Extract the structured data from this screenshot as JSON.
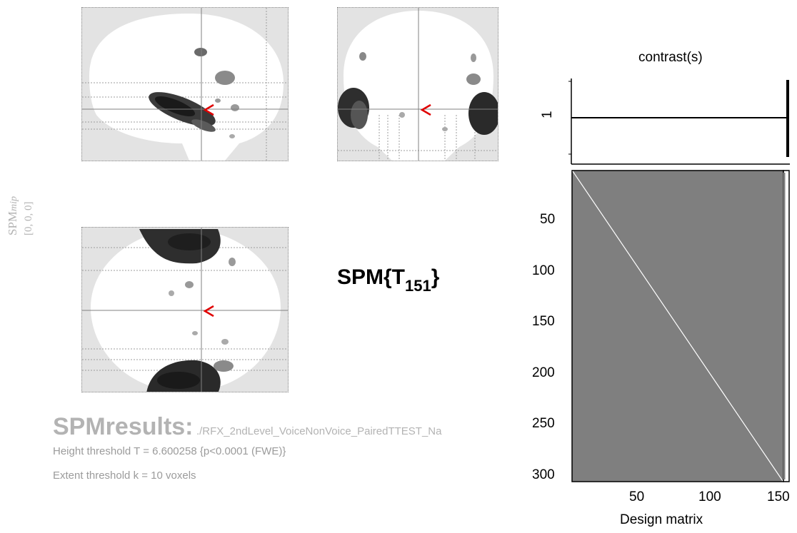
{
  "mip": {
    "label": "SPM",
    "label_italic": "mip",
    "coords": "[0, 0, 0]",
    "colors": {
      "background": "#e3e3e3",
      "brain": "#ffffff",
      "crosshair": "#808080",
      "marker": "#e00000"
    }
  },
  "stat": {
    "prefix": "SPM{T",
    "df": "151",
    "suffix": "}"
  },
  "results": {
    "title": "SPMresults:",
    "path": "./RFX_2ndLevel_VoiceNonVoice_PairedTTEST_Na",
    "height_threshold": "Height threshold T = 6.600258  {p<0.0001 (FWE)}",
    "extent_threshold": "Extent threshold k = 10 voxels"
  },
  "contrast": {
    "title": "contrast(s)",
    "row_label": "1"
  },
  "design_matrix": {
    "xlabel": "Design matrix",
    "y_ticks": [
      "50",
      "100",
      "150",
      "200",
      "250",
      "300"
    ],
    "x_ticks": [
      "50",
      "100",
      "150"
    ],
    "colors": {
      "matrix_bg": "#7f7f7f",
      "diagonal": "#ffffff"
    }
  }
}
